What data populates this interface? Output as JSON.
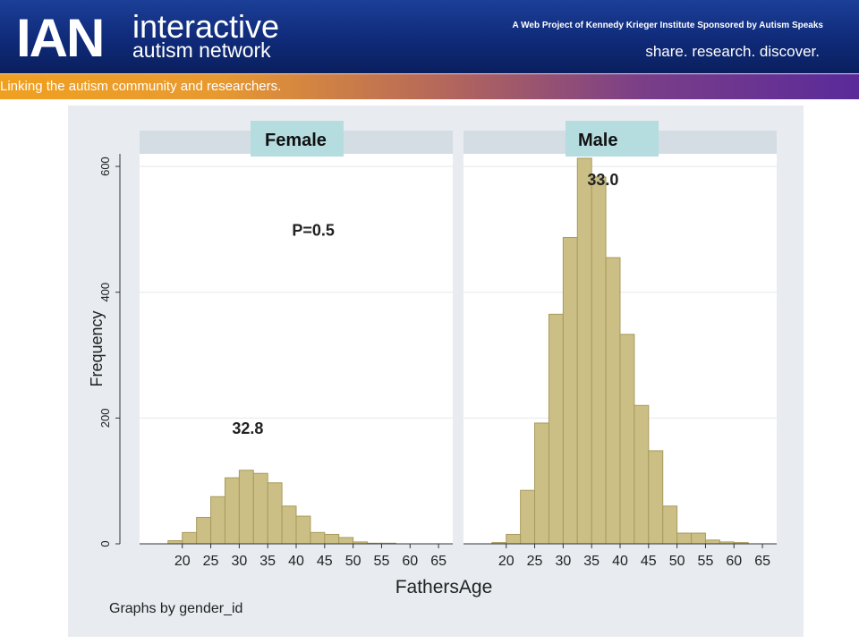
{
  "header": {
    "logo_text": "IAN",
    "brand_line1": "interactive",
    "brand_line2": "autism network",
    "sponsor": "A Web Project of Kennedy Krieger Institute  Sponsored by Autism Speaks",
    "slogan": "share. research. discover.",
    "stripe_text": "Linking the autism community and researchers."
  },
  "colors": {
    "bar_fill": "#cbbf85",
    "bar_stroke": "#a89a5c",
    "strip_label_bg": "#b5dde0",
    "plot_bg": "#ffffff",
    "outer_bg": "#e8ecf0"
  },
  "chart_data": {
    "type": "bar",
    "xlabel": "FathersAge",
    "ylabel": "Frequency",
    "note": "Graphs by gender_id",
    "xlim": [
      12.5,
      67.5
    ],
    "ylim": [
      0,
      620
    ],
    "x_ticks": [
      20,
      25,
      30,
      35,
      40,
      45,
      50,
      55,
      60,
      65
    ],
    "y_ticks": [
      0,
      200,
      400,
      600
    ],
    "bin_starts": [
      15,
      17.5,
      20,
      22.5,
      25,
      27.5,
      30,
      32.5,
      35,
      37.5,
      40,
      42.5,
      45,
      47.5,
      50,
      52.5,
      55,
      57.5,
      60,
      62.5
    ],
    "bin_width": 2.5,
    "panels": [
      {
        "name": "Female",
        "values": [
          0,
          5,
          18,
          42,
          75,
          105,
          117,
          112,
          97,
          60,
          44,
          18,
          15,
          10,
          3,
          1,
          1,
          0,
          0,
          0
        ],
        "annotations": [
          {
            "text": "32.8",
            "x": 31.5,
            "y": 175
          },
          {
            "text": "P=0.5",
            "x": 43,
            "y": 490
          }
        ]
      },
      {
        "name": "Male",
        "values": [
          0,
          2,
          15,
          85,
          192,
          365,
          487,
          613,
          583,
          455,
          333,
          220,
          148,
          60,
          17,
          17,
          6,
          3,
          2,
          0
        ],
        "annotations": [
          {
            "text": "33.0",
            "x": 37,
            "y": 570
          }
        ]
      }
    ]
  }
}
